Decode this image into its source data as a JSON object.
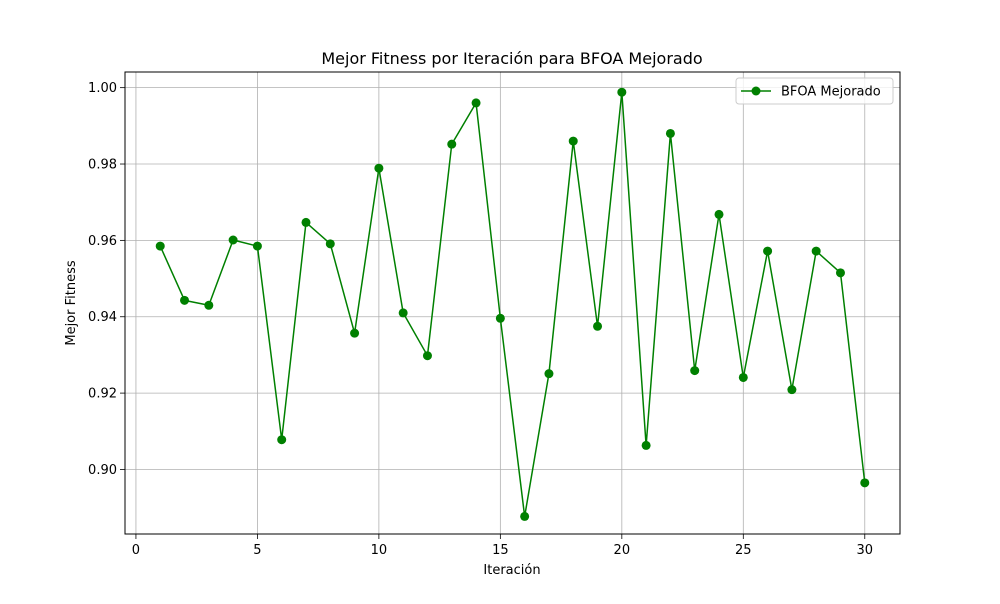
{
  "chart_data": {
    "type": "line",
    "title": "Mejor Fitness por Iteración para BFOA Mejorado",
    "xlabel": "Iteración",
    "ylabel": "Mejor Fitness",
    "xlim": [
      -0.45,
      31.45
    ],
    "ylim": [
      0.8831,
      1.0041
    ],
    "xticks": [
      0,
      5,
      10,
      15,
      20,
      25,
      30
    ],
    "yticks": [
      0.9,
      0.92,
      0.94,
      0.96,
      0.98,
      1.0
    ],
    "ytick_labels": [
      "0.90",
      "0.92",
      "0.94",
      "0.96",
      "0.98",
      "1.00"
    ],
    "grid": true,
    "legend_position": "upper right",
    "series": [
      {
        "name": "BFOA Mejorado",
        "color": "#008000",
        "marker": "circle",
        "x": [
          1,
          2,
          3,
          4,
          5,
          6,
          7,
          8,
          9,
          10,
          11,
          12,
          13,
          14,
          15,
          16,
          17,
          18,
          19,
          20,
          21,
          22,
          23,
          24,
          25,
          26,
          27,
          28,
          29,
          30
        ],
        "y": [
          0.9585,
          0.9443,
          0.943,
          0.9601,
          0.9585,
          0.9078,
          0.9647,
          0.9591,
          0.9357,
          0.9789,
          0.941,
          0.9298,
          0.9852,
          0.996,
          0.9396,
          0.8877,
          0.9251,
          0.986,
          0.9375,
          0.9988,
          0.9063,
          0.988,
          0.9259,
          0.9668,
          0.9241,
          0.9572,
          0.9209,
          0.9572,
          0.9515,
          0.8965
        ]
      }
    ]
  }
}
